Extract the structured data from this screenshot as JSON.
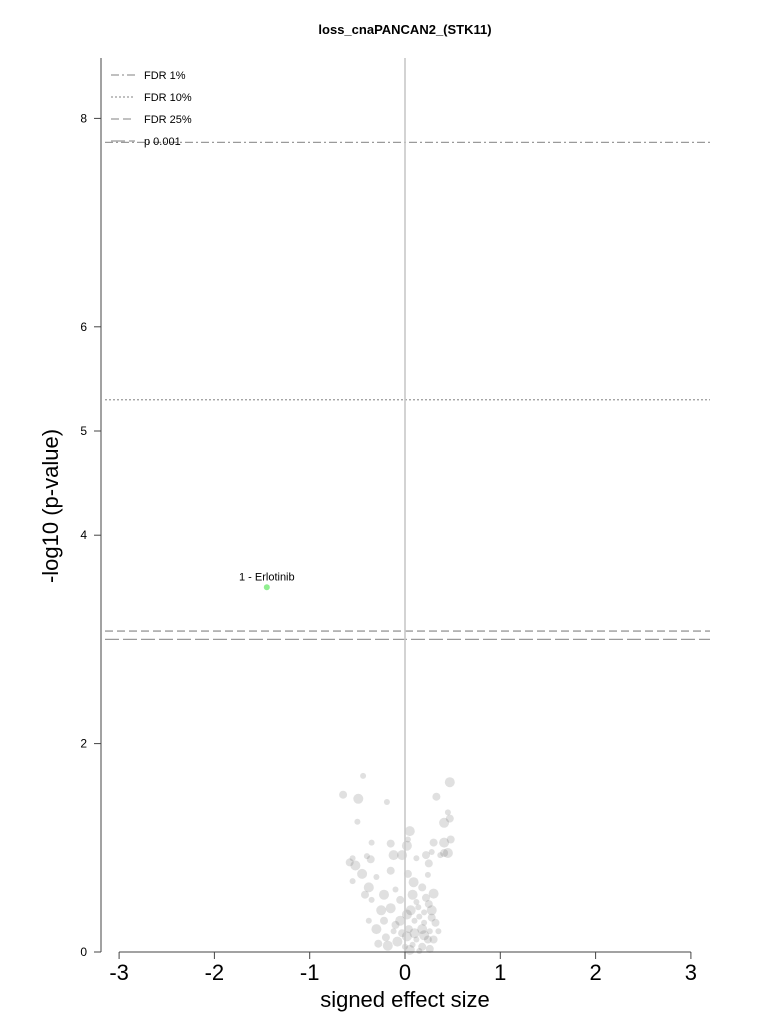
{
  "chart_data": {
    "type": "scatter",
    "title": "loss_cnaPANCAN2_(STK11)",
    "xlabel": "signed effect size",
    "ylabel": "-log10 (p-value)",
    "xlim": [
      -3.2,
      3.2
    ],
    "ylim": [
      0,
      8.6
    ],
    "xticks": [
      -3,
      -2,
      -1,
      0,
      1,
      2,
      3
    ],
    "yticks": [
      0,
      2,
      4,
      5,
      6,
      8
    ],
    "grid": false,
    "legend_position": "top-left",
    "thresholds": [
      {
        "name": "FDR 1%",
        "y": 7.77,
        "style": "dashdot"
      },
      {
        "name": "FDR 10%",
        "y": 5.3,
        "style": "dotted"
      },
      {
        "name": "FDR 25%",
        "y": 3.08,
        "style": "dashed"
      },
      {
        "name": "p 0.001",
        "y": 3.0,
        "style": "longdash"
      }
    ],
    "highlight": [
      {
        "label": "1 - Erlotinib",
        "x": -1.45,
        "y": 3.5,
        "color": "#90ee90"
      }
    ],
    "points": [
      [
        -0.44,
        1.69
      ],
      [
        -0.65,
        1.51
      ],
      [
        -0.49,
        1.47
      ],
      [
        -0.19,
        1.44
      ],
      [
        0.33,
        1.49
      ],
      [
        0.47,
        1.63
      ],
      [
        0.45,
        1.34
      ],
      [
        0.47,
        1.28
      ],
      [
        0.41,
        1.24
      ],
      [
        -0.5,
        1.25
      ],
      [
        0.48,
        1.08
      ],
      [
        0.05,
        1.16
      ],
      [
        0.03,
        1.08
      ],
      [
        0.3,
        1.05
      ],
      [
        0.41,
        1.05
      ],
      [
        -0.35,
        1.05
      ],
      [
        -0.15,
        1.04
      ],
      [
        0.02,
        1.02
      ],
      [
        -0.55,
        0.9
      ],
      [
        -0.58,
        0.86
      ],
      [
        -0.52,
        0.83
      ],
      [
        -0.4,
        0.92
      ],
      [
        -0.36,
        0.89
      ],
      [
        -0.12,
        0.93
      ],
      [
        0.28,
        0.96
      ],
      [
        0.41,
        0.95
      ],
      [
        0.45,
        0.95
      ],
      [
        0.37,
        0.93
      ],
      [
        0.22,
        0.93
      ],
      [
        -0.03,
        0.93
      ],
      [
        0.12,
        0.9
      ],
      [
        0.25,
        0.85
      ],
      [
        -0.45,
        0.75
      ],
      [
        -0.3,
        0.72
      ],
      [
        -0.15,
        0.78
      ],
      [
        -0.38,
        0.62
      ],
      [
        -0.55,
        0.68
      ],
      [
        -0.42,
        0.55
      ],
      [
        -0.22,
        0.55
      ],
      [
        -0.1,
        0.6
      ],
      [
        0.03,
        0.75
      ],
      [
        0.09,
        0.67
      ],
      [
        0.24,
        0.74
      ],
      [
        0.18,
        0.62
      ],
      [
        0.3,
        0.56
      ],
      [
        -0.35,
        0.5
      ],
      [
        -0.05,
        0.5
      ],
      [
        0.08,
        0.55
      ],
      [
        0.14,
        0.43
      ],
      [
        0.25,
        0.46
      ],
      [
        -0.15,
        0.42
      ],
      [
        0.2,
        0.38
      ],
      [
        0.28,
        0.33
      ],
      [
        0.02,
        0.36
      ],
      [
        -0.38,
        0.3
      ],
      [
        -0.22,
        0.3
      ],
      [
        -0.05,
        0.3
      ],
      [
        0.1,
        0.3
      ],
      [
        0.32,
        0.28
      ],
      [
        -0.3,
        0.22
      ],
      [
        -0.12,
        0.2
      ],
      [
        0.04,
        0.22
      ],
      [
        0.18,
        0.22
      ],
      [
        0.26,
        0.2
      ],
      [
        -0.2,
        0.14
      ],
      [
        0.02,
        0.15
      ],
      [
        0.12,
        0.12
      ],
      [
        0.24,
        0.12
      ],
      [
        -0.08,
        0.1
      ],
      [
        0.08,
        0.07
      ],
      [
        0.18,
        0.05
      ],
      [
        -0.18,
        0.06
      ],
      [
        0.0,
        0.05
      ],
      [
        0.26,
        0.03
      ],
      [
        0.05,
        0.02
      ],
      [
        0.15,
        0.01
      ],
      [
        -0.03,
        0.18
      ],
      [
        0.1,
        0.18
      ],
      [
        0.2,
        0.28
      ],
      [
        0.3,
        0.12
      ],
      [
        -0.25,
        0.4
      ],
      [
        0.12,
        0.48
      ],
      [
        0.22,
        0.52
      ],
      [
        0.06,
        0.4
      ],
      [
        0.15,
        0.34
      ],
      [
        -0.1,
        0.26
      ],
      [
        0.28,
        0.4
      ],
      [
        0.35,
        0.2
      ],
      [
        -0.28,
        0.08
      ],
      [
        0.2,
        0.16
      ]
    ]
  }
}
